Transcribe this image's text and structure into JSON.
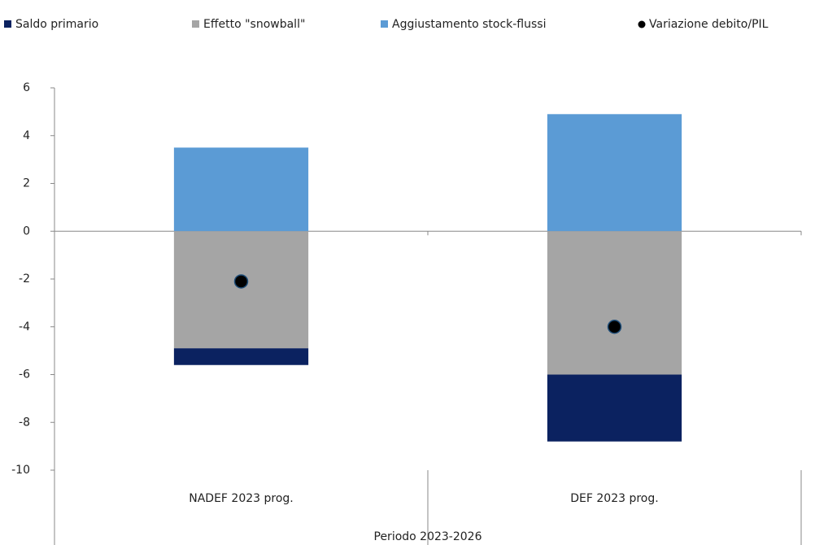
{
  "chart_data": {
    "type": "bar",
    "stacked": true,
    "categories": [
      "NADEF 2023 prog.",
      "DEF 2023 prog."
    ],
    "group_label": "Periodo 2023-2026",
    "series": [
      {
        "name": "Saldo primario",
        "color": "#0b2260",
        "values": [
          -0.7,
          -2.8
        ]
      },
      {
        "name": "Effetto \"snowball\"",
        "color": "#a5a5a5",
        "values": [
          -4.9,
          -6.0
        ]
      },
      {
        "name": "Aggiustamento stock-flussi",
        "color": "#5b9bd5",
        "values": [
          3.5,
          4.9
        ]
      },
      {
        "name": "Variazione debito/PIL",
        "color": "#000000",
        "type": "scatter",
        "values": [
          -2.1,
          -4.0
        ]
      }
    ],
    "ylim": [
      -10,
      6
    ],
    "yticks": [
      -10,
      -8,
      -6,
      -4,
      -2,
      0,
      2,
      4,
      6
    ],
    "legend": "top"
  }
}
